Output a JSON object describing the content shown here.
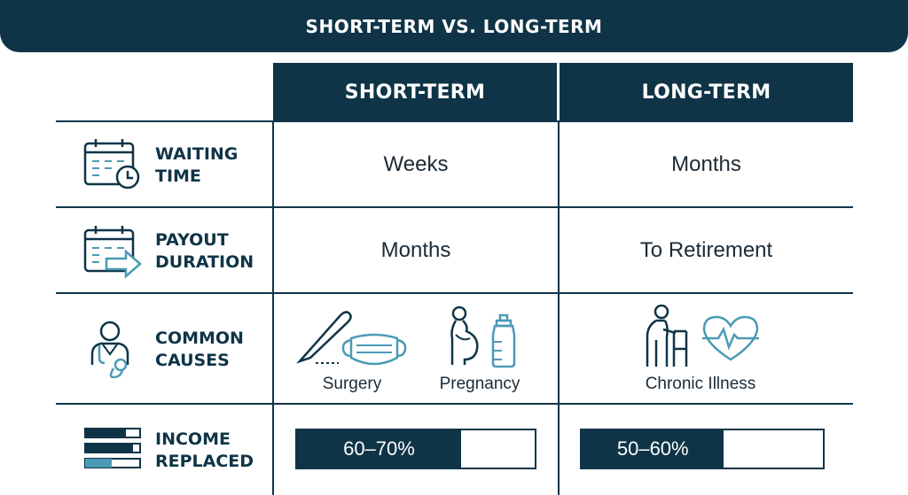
{
  "title": "SHORT-TERM VS. LONG-TERM",
  "columns": {
    "short_term": "SHORT-TERM",
    "long_term": "LONG-TERM"
  },
  "rows": {
    "waiting_time": {
      "label_line1": "WAITING",
      "label_line2": "TIME",
      "icon": "calendar-clock-icon",
      "short_term": "Weeks",
      "long_term": "Months"
    },
    "payout_duration": {
      "label_line1": "PAYOUT",
      "label_line2": "DURATION",
      "icon": "calendar-arrow-icon",
      "short_term": "Months",
      "long_term": "To Retirement"
    },
    "common_causes": {
      "label_line1": "COMMON",
      "label_line2": "CAUSES",
      "icon": "doctor-icon",
      "short_term": [
        {
          "label": "Surgery",
          "icons": [
            "scalpel-icon",
            "face-mask-icon"
          ]
        },
        {
          "label": "Pregnancy",
          "icons": [
            "pregnant-woman-icon",
            "baby-bottle-icon"
          ]
        }
      ],
      "long_term": [
        {
          "label": "Chronic Illness",
          "icons": [
            "elderly-walker-icon",
            "heartbeat-icon"
          ]
        }
      ]
    },
    "income_replaced": {
      "label_line1": "INCOME",
      "label_line2": "REPLACED",
      "icon": "bar-levels-icon",
      "short_term": {
        "label": "60–70%",
        "fill_fraction": 0.69
      },
      "long_term": {
        "label": "50–60%",
        "fill_fraction": 0.59
      }
    }
  },
  "colors": {
    "navy": "#0f3447",
    "accent": "#4a9ab5",
    "text": "#1b2a36",
    "background": "#ffffff"
  }
}
